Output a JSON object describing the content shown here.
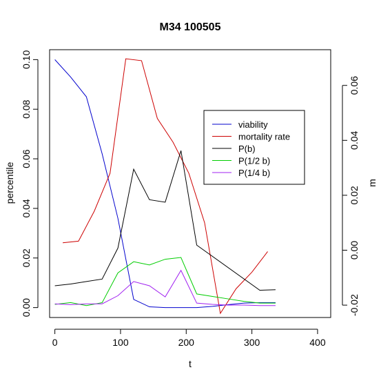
{
  "chart_data": {
    "type": "line",
    "title": "M34 100505",
    "xlabel": "t",
    "ylabel": "percentile",
    "y2label": "m",
    "xlim": [
      -8,
      420
    ],
    "ylim": [
      -0.004,
      0.104
    ],
    "y2lim": [
      -0.0245,
      0.073
    ],
    "x_ticks": [
      0,
      100,
      200,
      300,
      400
    ],
    "y_ticks": [
      0.0,
      0.02,
      0.04,
      0.06,
      0.08,
      0.1
    ],
    "y_tick_labels": [
      "0.00",
      "0.02",
      "0.04",
      "0.06",
      "0.08",
      "0.10"
    ],
    "y2_ticks": [
      -0.02,
      0.0,
      0.02,
      0.04,
      0.06
    ],
    "y2_tick_labels": [
      "-0.02",
      "0.00",
      "0.02",
      "0.04",
      "0.06"
    ],
    "grid": false,
    "legend_position": "center-right",
    "series": [
      {
        "name": "viability",
        "color": "#0000cd",
        "axis": "left",
        "x": [
          0,
          24,
          48,
          72,
          96,
          120,
          144,
          168,
          192,
          216,
          240,
          264,
          288,
          312,
          336
        ],
        "y": [
          0.1,
          0.093,
          0.085,
          0.062,
          0.036,
          0.0033,
          0.0003,
          0.0,
          0.0,
          0.0,
          0.0005,
          0.0012,
          0.0018,
          0.002,
          0.002
        ]
      },
      {
        "name": "mortality rate",
        "color": "#cd0000",
        "axis": "right",
        "x": [
          12,
          36,
          60,
          84,
          108,
          132,
          156,
          180,
          204,
          228,
          252,
          276,
          300,
          324
        ],
        "y": [
          0.0027,
          0.0033,
          0.0142,
          0.028,
          0.0697,
          0.069,
          0.048,
          0.0393,
          0.028,
          0.01,
          -0.023,
          -0.014,
          -0.008,
          -0.0005
        ]
      },
      {
        "name": "P(b)",
        "color": "#000000",
        "axis": "left",
        "x": [
          0,
          24,
          48,
          72,
          96,
          120,
          144,
          168,
          192,
          216,
          312,
          336
        ],
        "y": [
          0.0088,
          0.0095,
          0.0105,
          0.0115,
          0.024,
          0.0558,
          0.0435,
          0.0425,
          0.0633,
          0.0252,
          0.007,
          0.0072
        ]
      },
      {
        "name": "P(1/2 b)",
        "color": "#00cd00",
        "axis": "left",
        "x": [
          0,
          24,
          48,
          72,
          96,
          120,
          144,
          168,
          192,
          216,
          240,
          264,
          288,
          312,
          336
        ],
        "y": [
          0.0013,
          0.002,
          0.0008,
          0.002,
          0.014,
          0.0185,
          0.0172,
          0.0195,
          0.0202,
          0.0055,
          0.0045,
          0.0035,
          0.0025,
          0.0018,
          0.0018
        ]
      },
      {
        "name": "P(1/4 b)",
        "color": "#a020f0",
        "axis": "left",
        "x": [
          0,
          24,
          48,
          72,
          96,
          120,
          144,
          168,
          192,
          216,
          240,
          264,
          288,
          312,
          336
        ],
        "y": [
          0.0015,
          0.0012,
          0.0015,
          0.0015,
          0.0048,
          0.0105,
          0.0088,
          0.0043,
          0.015,
          0.0018,
          0.0013,
          0.001,
          0.001,
          0.0008,
          0.0008
        ]
      }
    ]
  }
}
